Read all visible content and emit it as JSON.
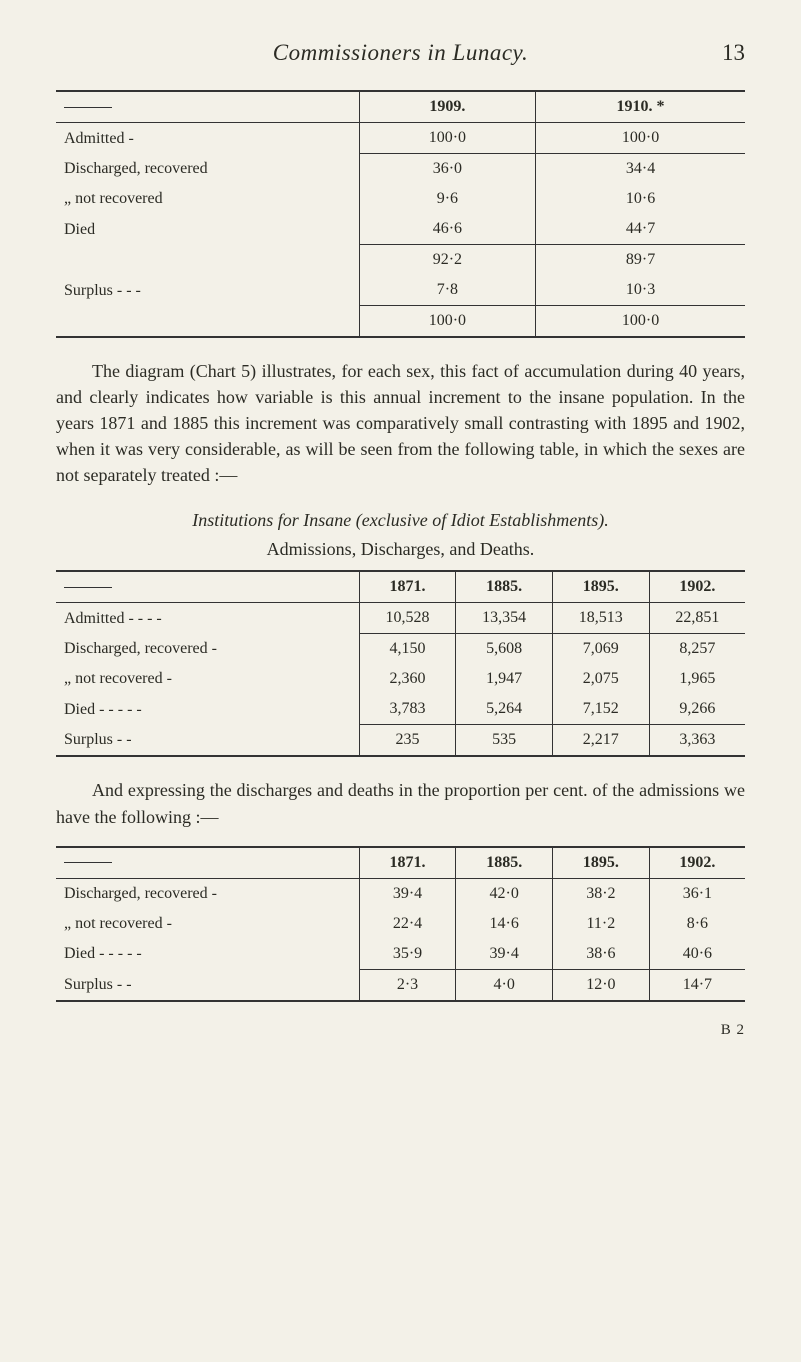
{
  "header": {
    "running_title": "Commissioners in Lunacy.",
    "page_number": "13"
  },
  "table1": {
    "type": "table",
    "col_headers": [
      "1909.",
      "1910. *"
    ],
    "rows": [
      {
        "label": "Admitted -",
        "c1": "100·0",
        "c2": "100·0",
        "section_break_after": true
      },
      {
        "label": "Discharged, recovered",
        "c1": "36·0",
        "c2": "34·4"
      },
      {
        "label": "„        not recovered",
        "c1": "9·6",
        "c2": "10·6",
        "indent": true
      },
      {
        "label": "Died",
        "c1": "46·6",
        "c2": "44·7",
        "section_break_after": true
      },
      {
        "label": "",
        "c1": "92·2",
        "c2": "89·7"
      },
      {
        "label": "Surplus   -   -   -",
        "c1": "7·8",
        "c2": "10·3",
        "surplus": true,
        "section_break_after": true
      },
      {
        "label": "",
        "c1": "100·0",
        "c2": "100·0",
        "section_break_after": true
      }
    ],
    "column_widths_pct": [
      48,
      26,
      26
    ],
    "font_size_pt": 12
  },
  "para1": "The diagram (Chart 5) illustrates, for each sex, this fact of accumulation during 40 years, and clearly indicates how variable is this annual increment to the insane population. In the years 1871 and 1885 this increment was comparatively small contrasting with 1895 and 1902, when it was very considerable, as will be seen from the following table, in which the sexes are not separately treated :—",
  "subheading1": "Institutions for Insane (exclusive of Idiot Establishments).",
  "subheading2": "Admissions, Discharges, and Deaths.",
  "table2": {
    "type": "table",
    "col_headers": [
      "1871.",
      "1885.",
      "1895.",
      "1902."
    ],
    "rows": [
      {
        "label": "Admitted -   -   -   -",
        "c1": "10,528",
        "c2": "13,354",
        "c3": "18,513",
        "c4": "22,851",
        "section_break_after": true
      },
      {
        "label": "Discharged, recovered   -",
        "c1": "4,150",
        "c2": "5,608",
        "c3": "7,069",
        "c4": "8,257"
      },
      {
        "label": "„        not recovered -",
        "c1": "2,360",
        "c2": "1,947",
        "c3": "2,075",
        "c4": "1,965",
        "indent": true
      },
      {
        "label": "Died -   -   -   -   -",
        "c1": "3,783",
        "c2": "5,264",
        "c3": "7,152",
        "c4": "9,266",
        "section_break_after": true
      },
      {
        "label": "Surplus   -   -",
        "c1": "235",
        "c2": "535",
        "c3": "2,217",
        "c4": "3,363",
        "surplus": true,
        "section_break_after": true
      }
    ],
    "column_widths_pct": [
      36,
      16,
      16,
      16,
      16
    ],
    "font_size_pt": 12
  },
  "para2": "And expressing the discharges and deaths in the proportion per cent. of the admissions we have the following :—",
  "table3": {
    "type": "table",
    "col_headers": [
      "1871.",
      "1885.",
      "1895.",
      "1902."
    ],
    "rows": [
      {
        "label": "Discharged, recovered   -",
        "c1": "39·4",
        "c2": "42·0",
        "c3": "38·2",
        "c4": "36·1"
      },
      {
        "label": "„        not recovered -",
        "c1": "22·4",
        "c2": "14·6",
        "c3": "11·2",
        "c4": "8·6",
        "indent": true
      },
      {
        "label": "Died -   -   -   -   -",
        "c1": "35·9",
        "c2": "39·4",
        "c3": "38·6",
        "c4": "40·6",
        "section_break_after": true
      },
      {
        "label": "Surplus   -   -",
        "c1": "2·3",
        "c2": "4·0",
        "c3": "12·0",
        "c4": "14·7",
        "surplus": true,
        "section_break_after": true
      }
    ],
    "column_widths_pct": [
      36,
      16,
      16,
      16,
      16
    ],
    "font_size_pt": 12
  },
  "signature": "B 2",
  "colors": {
    "background": "#f3f1e8",
    "text": "#2b2b24",
    "rule": "#333333"
  }
}
